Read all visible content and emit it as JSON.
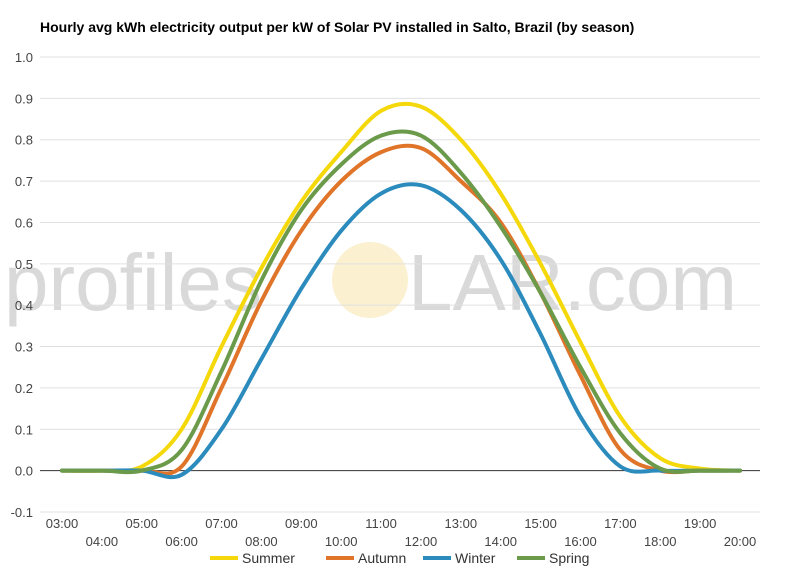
{
  "watermark": {
    "left": "profiles",
    "right": "LAR.com"
  },
  "chart_data": {
    "type": "line",
    "title": "Hourly avg kWh electricity output per kW of Solar PV installed in Salto, Brazil (by season)",
    "xlabel": "",
    "ylabel": "",
    "ylim": [
      -0.1,
      1.0
    ],
    "yticks": [
      "-0.1",
      "0.0",
      "0.1",
      "0.2",
      "0.3",
      "0.4",
      "0.5",
      "0.6",
      "0.7",
      "0.8",
      "0.9",
      "1.0"
    ],
    "x": [
      "03:00",
      "04:00",
      "05:00",
      "06:00",
      "07:00",
      "08:00",
      "09:00",
      "10:00",
      "11:00",
      "12:00",
      "13:00",
      "14:00",
      "15:00",
      "16:00",
      "17:00",
      "18:00",
      "19:00",
      "20:00"
    ],
    "grid": true,
    "legend": "bottom",
    "series": [
      {
        "name": "Summer",
        "color": "#f5d80a",
        "values": [
          0.0,
          0.0,
          0.01,
          0.1,
          0.3,
          0.49,
          0.65,
          0.77,
          0.87,
          0.88,
          0.8,
          0.67,
          0.5,
          0.31,
          0.13,
          0.03,
          0.005,
          0.0
        ]
      },
      {
        "name": "Autumn",
        "color": "#e07428",
        "values": [
          0.0,
          0.0,
          0.0,
          0.01,
          0.2,
          0.41,
          0.58,
          0.7,
          0.77,
          0.78,
          0.7,
          0.6,
          0.43,
          0.23,
          0.05,
          0.0,
          0.0,
          0.0
        ]
      },
      {
        "name": "Winter",
        "color": "#2b8bbd",
        "values": [
          0.0,
          0.0,
          0.0,
          -0.01,
          0.1,
          0.27,
          0.44,
          0.58,
          0.67,
          0.69,
          0.63,
          0.51,
          0.33,
          0.13,
          0.01,
          0.0,
          0.0,
          0.0
        ]
      },
      {
        "name": "Spring",
        "color": "#6a9a4a",
        "values": [
          0.0,
          0.0,
          0.0,
          0.05,
          0.24,
          0.46,
          0.63,
          0.74,
          0.81,
          0.81,
          0.72,
          0.59,
          0.43,
          0.25,
          0.09,
          0.005,
          0.0,
          0.0
        ]
      }
    ]
  }
}
